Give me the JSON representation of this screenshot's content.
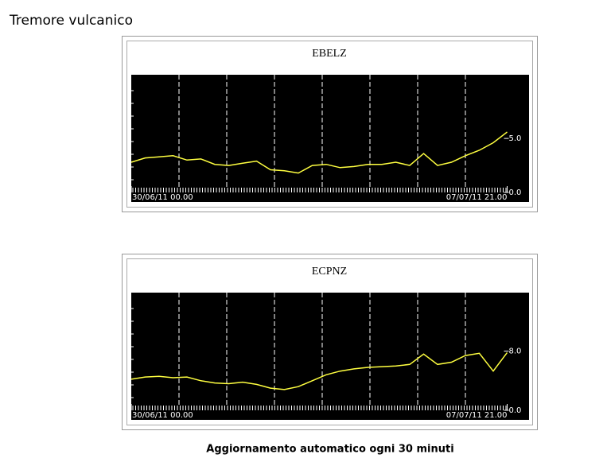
{
  "page": {
    "title": "Tremore vulcanico",
    "footer": "Aggiornamento automatico ogni 30 minuti"
  },
  "chart_data": [
    {
      "type": "line",
      "title": "EBELZ",
      "x": [
        "2011-06-30T00:00",
        "2011-06-30T07:00",
        "2011-06-30T14:00",
        "2011-06-30T21:00",
        "2011-07-01T04:00",
        "2011-07-01T11:00",
        "2011-07-01T18:00",
        "2011-07-02T01:00",
        "2011-07-02T08:00",
        "2011-07-02T15:00",
        "2011-07-02T22:00",
        "2011-07-03T05:00",
        "2011-07-03T12:00",
        "2011-07-03T19:00",
        "2011-07-04T02:00",
        "2011-07-04T09:00",
        "2011-07-04T16:00",
        "2011-07-04T23:00",
        "2011-07-05T06:00",
        "2011-07-05T13:00",
        "2011-07-05T20:00",
        "2011-07-06T03:00",
        "2011-07-06T10:00",
        "2011-07-06T17:00",
        "2011-07-07T00:00",
        "2011-07-07T07:00",
        "2011-07-07T14:00",
        "2011-07-07T21:00"
      ],
      "series": [
        {
          "color": "#ffff40",
          "values": [
            2.8,
            3.2,
            3.3,
            3.4,
            3.0,
            3.1,
            2.6,
            2.5,
            2.7,
            2.9,
            2.1,
            2.0,
            1.8,
            2.5,
            2.6,
            2.3,
            2.4,
            2.6,
            2.6,
            2.8,
            2.5,
            3.6,
            2.5,
            2.8,
            3.4,
            3.9,
            4.6,
            5.6
          ]
        }
      ],
      "xlim": [
        "2011-06-30T00:00",
        "2011-07-08T08:00"
      ],
      "xticks": [
        {
          "value": "2011-06-30T00:00",
          "label": "30/06/11 00.00"
        },
        {
          "value": "2011-07-07T21:00",
          "label": "07/07/11 21.00"
        }
      ],
      "xgridlines": [
        "2011-07-01T00:00",
        "2011-07-02T00:00",
        "2011-07-03T00:00",
        "2011-07-04T00:00",
        "2011-07-05T00:00",
        "2011-07-06T00:00",
        "2011-07-07T00:00"
      ],
      "ylim": [
        0,
        10.9
      ],
      "yticks": [
        {
          "value": 0,
          "label": "0.0"
        },
        {
          "value": 5,
          "label": "5.0"
        }
      ]
    },
    {
      "type": "line",
      "title": "ECPNZ",
      "x": [
        "2011-06-30T00:00",
        "2011-06-30T07:00",
        "2011-06-30T14:00",
        "2011-06-30T21:00",
        "2011-07-01T04:00",
        "2011-07-01T11:00",
        "2011-07-01T18:00",
        "2011-07-02T01:00",
        "2011-07-02T08:00",
        "2011-07-02T15:00",
        "2011-07-02T22:00",
        "2011-07-03T05:00",
        "2011-07-03T12:00",
        "2011-07-03T19:00",
        "2011-07-04T02:00",
        "2011-07-04T09:00",
        "2011-07-04T16:00",
        "2011-07-04T23:00",
        "2011-07-05T06:00",
        "2011-07-05T13:00",
        "2011-07-05T20:00",
        "2011-07-06T03:00",
        "2011-07-06T10:00",
        "2011-07-06T17:00",
        "2011-07-07T00:00",
        "2011-07-07T07:00",
        "2011-07-07T14:00",
        "2011-07-07T21:00"
      ],
      "series": [
        {
          "color": "#ffff40",
          "values": [
            4.2,
            4.5,
            4.6,
            4.4,
            4.5,
            4.0,
            3.7,
            3.6,
            3.8,
            3.5,
            3.0,
            2.8,
            3.2,
            4.0,
            4.8,
            5.3,
            5.6,
            5.8,
            5.9,
            6.0,
            6.2,
            7.6,
            6.2,
            6.5,
            7.4,
            7.7,
            5.3,
            7.8
          ]
        }
      ],
      "xlim": [
        "2011-06-30T00:00",
        "2011-07-08T08:00"
      ],
      "xticks": [
        {
          "value": "2011-06-30T00:00",
          "label": "30/06/11 00.00"
        },
        {
          "value": "2011-07-07T21:00",
          "label": "07/07/11 21.00"
        }
      ],
      "xgridlines": [
        "2011-07-01T00:00",
        "2011-07-02T00:00",
        "2011-07-03T00:00",
        "2011-07-04T00:00",
        "2011-07-05T00:00",
        "2011-07-06T00:00",
        "2011-07-07T00:00"
      ],
      "ylim": [
        0,
        15.9
      ],
      "yticks": [
        {
          "value": 0,
          "label": "0.0"
        },
        {
          "value": 8,
          "label": "8.0"
        }
      ]
    }
  ]
}
